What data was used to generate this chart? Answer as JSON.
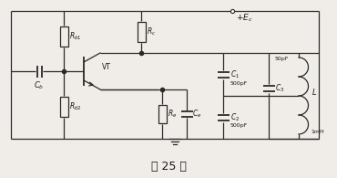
{
  "title": "题 25 图",
  "title_fontsize": 9,
  "fig_width": 3.7,
  "fig_height": 1.95,
  "dpi": 100,
  "bg_color": "#f0ede8",
  "line_color": "#2a2a2a",
  "text_color": "#1a1a1a",
  "labels": {
    "Ec": "+$E_c$",
    "Rc": "$R_c$",
    "Rb1": "$R_{b1}$",
    "Rb2": "$R_{b2}$",
    "Re": "$R_e$",
    "Ce": "$C_e$",
    "Cb": "$C_b$",
    "VT": "VT",
    "C1": "$C_1$",
    "C1_val": "500pF",
    "C2": "$C_2$",
    "C2_val": "500pF",
    "C3": "$C_3$",
    "C3_val": "50pF",
    "L": "$L$",
    "L_val": "1mH"
  }
}
